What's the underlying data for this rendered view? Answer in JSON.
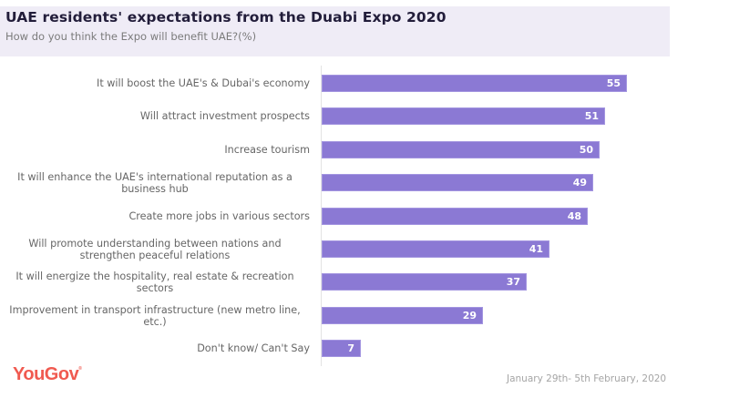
{
  "header": {
    "title": "UAE residents' expectations from the Duabi Expo 2020",
    "subtitle": "How do you think the Expo will benefit UAE?(%)"
  },
  "chart_data": {
    "type": "bar",
    "orientation": "horizontal",
    "title": "UAE residents' expectations from the Duabi Expo 2020",
    "subtitle": "How do you think the Expo will benefit UAE?(%)",
    "xlabel": "",
    "ylabel": "",
    "unit": "%",
    "grid": false,
    "legend": "none",
    "xlim": [
      0,
      60
    ],
    "categories": [
      "It will boost the UAE's & Dubai's economy",
      "Will attract investment prospects",
      "Increase tourism",
      "It will enhance the UAE's international reputation as a business hub",
      "Create more jobs in various sectors",
      "Will promote understanding between nations and strengthen peaceful relations",
      "It will energize the hospitality, real estate & recreation sectors",
      "Improvement in transport infrastructure (new metro line, etc.)",
      "Don't know/ Can't Say"
    ],
    "values": [
      55,
      51,
      50,
      49,
      48,
      41,
      37,
      29,
      7
    ],
    "bar_color": "#8b79d4",
    "value_label_color": "#ffffff"
  },
  "footer": {
    "brand": "YouGov",
    "brand_mark": "®",
    "brand_color": "#f05a50",
    "date_range": "January 29th- 5th February, 2020"
  }
}
